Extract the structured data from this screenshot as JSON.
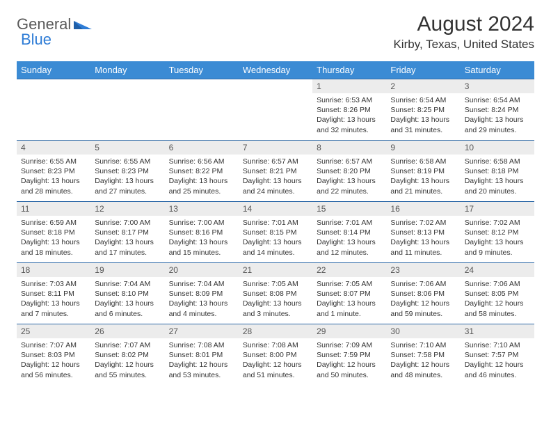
{
  "logo": {
    "part1": "General",
    "part2": "Blue"
  },
  "header": {
    "month_title": "August 2024",
    "location": "Kirby, Texas, United States"
  },
  "colors": {
    "header_row": "#3b8bd4",
    "week_divider": "#2f6aa8",
    "daynum_bg": "#ececec",
    "logo_accent": "#2e7cd6",
    "logo_gray": "#5a5a5a",
    "text": "#333333",
    "background": "#ffffff"
  },
  "day_names": [
    "Sunday",
    "Monday",
    "Tuesday",
    "Wednesday",
    "Thursday",
    "Friday",
    "Saturday"
  ],
  "weeks": [
    [
      null,
      null,
      null,
      null,
      {
        "n": "1",
        "sr": "6:53 AM",
        "ss": "8:26 PM",
        "dl": "13 hours and 32 minutes."
      },
      {
        "n": "2",
        "sr": "6:54 AM",
        "ss": "8:25 PM",
        "dl": "13 hours and 31 minutes."
      },
      {
        "n": "3",
        "sr": "6:54 AM",
        "ss": "8:24 PM",
        "dl": "13 hours and 29 minutes."
      }
    ],
    [
      {
        "n": "4",
        "sr": "6:55 AM",
        "ss": "8:23 PM",
        "dl": "13 hours and 28 minutes."
      },
      {
        "n": "5",
        "sr": "6:55 AM",
        "ss": "8:23 PM",
        "dl": "13 hours and 27 minutes."
      },
      {
        "n": "6",
        "sr": "6:56 AM",
        "ss": "8:22 PM",
        "dl": "13 hours and 25 minutes."
      },
      {
        "n": "7",
        "sr": "6:57 AM",
        "ss": "8:21 PM",
        "dl": "13 hours and 24 minutes."
      },
      {
        "n": "8",
        "sr": "6:57 AM",
        "ss": "8:20 PM",
        "dl": "13 hours and 22 minutes."
      },
      {
        "n": "9",
        "sr": "6:58 AM",
        "ss": "8:19 PM",
        "dl": "13 hours and 21 minutes."
      },
      {
        "n": "10",
        "sr": "6:58 AM",
        "ss": "8:18 PM",
        "dl": "13 hours and 20 minutes."
      }
    ],
    [
      {
        "n": "11",
        "sr": "6:59 AM",
        "ss": "8:18 PM",
        "dl": "13 hours and 18 minutes."
      },
      {
        "n": "12",
        "sr": "7:00 AM",
        "ss": "8:17 PM",
        "dl": "13 hours and 17 minutes."
      },
      {
        "n": "13",
        "sr": "7:00 AM",
        "ss": "8:16 PM",
        "dl": "13 hours and 15 minutes."
      },
      {
        "n": "14",
        "sr": "7:01 AM",
        "ss": "8:15 PM",
        "dl": "13 hours and 14 minutes."
      },
      {
        "n": "15",
        "sr": "7:01 AM",
        "ss": "8:14 PM",
        "dl": "13 hours and 12 minutes."
      },
      {
        "n": "16",
        "sr": "7:02 AM",
        "ss": "8:13 PM",
        "dl": "13 hours and 11 minutes."
      },
      {
        "n": "17",
        "sr": "7:02 AM",
        "ss": "8:12 PM",
        "dl": "13 hours and 9 minutes."
      }
    ],
    [
      {
        "n": "18",
        "sr": "7:03 AM",
        "ss": "8:11 PM",
        "dl": "13 hours and 7 minutes."
      },
      {
        "n": "19",
        "sr": "7:04 AM",
        "ss": "8:10 PM",
        "dl": "13 hours and 6 minutes."
      },
      {
        "n": "20",
        "sr": "7:04 AM",
        "ss": "8:09 PM",
        "dl": "13 hours and 4 minutes."
      },
      {
        "n": "21",
        "sr": "7:05 AM",
        "ss": "8:08 PM",
        "dl": "13 hours and 3 minutes."
      },
      {
        "n": "22",
        "sr": "7:05 AM",
        "ss": "8:07 PM",
        "dl": "13 hours and 1 minute."
      },
      {
        "n": "23",
        "sr": "7:06 AM",
        "ss": "8:06 PM",
        "dl": "12 hours and 59 minutes."
      },
      {
        "n": "24",
        "sr": "7:06 AM",
        "ss": "8:05 PM",
        "dl": "12 hours and 58 minutes."
      }
    ],
    [
      {
        "n": "25",
        "sr": "7:07 AM",
        "ss": "8:03 PM",
        "dl": "12 hours and 56 minutes."
      },
      {
        "n": "26",
        "sr": "7:07 AM",
        "ss": "8:02 PM",
        "dl": "12 hours and 55 minutes."
      },
      {
        "n": "27",
        "sr": "7:08 AM",
        "ss": "8:01 PM",
        "dl": "12 hours and 53 minutes."
      },
      {
        "n": "28",
        "sr": "7:08 AM",
        "ss": "8:00 PM",
        "dl": "12 hours and 51 minutes."
      },
      {
        "n": "29",
        "sr": "7:09 AM",
        "ss": "7:59 PM",
        "dl": "12 hours and 50 minutes."
      },
      {
        "n": "30",
        "sr": "7:10 AM",
        "ss": "7:58 PM",
        "dl": "12 hours and 48 minutes."
      },
      {
        "n": "31",
        "sr": "7:10 AM",
        "ss": "7:57 PM",
        "dl": "12 hours and 46 minutes."
      }
    ]
  ],
  "labels": {
    "sunrise": "Sunrise:",
    "sunset": "Sunset:",
    "daylight": "Daylight:"
  }
}
